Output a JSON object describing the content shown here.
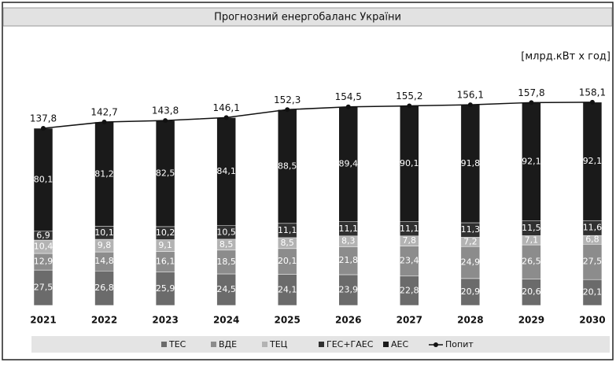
{
  "chart_data": {
    "type": "bar",
    "stacked": true,
    "title": "Прогнозний енергобаланс України",
    "unit_label": "[млрд.кВт х год]",
    "categories": [
      "2021",
      "2022",
      "2023",
      "2024",
      "2025",
      "2026",
      "2027",
      "2028",
      "2029",
      "2030"
    ],
    "series": [
      {
        "name": "ТЕС",
        "color": "#6b6b6b",
        "values": [
          27.5,
          26.8,
          25.9,
          24.5,
          24.1,
          23.9,
          22.8,
          20.9,
          20.6,
          20.1
        ],
        "value_labels": [
          "27,5",
          "26,8",
          "25,9",
          "24,5",
          "24,1",
          "23,9",
          "22,8",
          "20,9",
          "20,6",
          "20,1"
        ]
      },
      {
        "name": "ВДЕ",
        "color": "#8c8c8c",
        "values": [
          12.9,
          14.8,
          16.1,
          18.5,
          20.1,
          21.8,
          23.4,
          24.9,
          26.5,
          27.5
        ],
        "value_labels": [
          "12,9",
          "14,8",
          "16,1",
          "18,5",
          "20,1",
          "21,8",
          "23,4",
          "24,9",
          "26,5",
          "27,5"
        ]
      },
      {
        "name": "ТЕЦ",
        "color": "#b3b3b3",
        "values": [
          10.4,
          9.8,
          9.1,
          8.5,
          8.5,
          8.3,
          7.8,
          7.2,
          7.1,
          6.8
        ],
        "value_labels": [
          "10,4",
          "9,8",
          "9,1",
          "8,5",
          "8,5",
          "8,3",
          "7,8",
          "7,2",
          "7,1",
          "6,8"
        ]
      },
      {
        "name": "ГЕС+ГАЕС",
        "color": "#303030",
        "values": [
          6.9,
          10.1,
          10.2,
          10.5,
          11.1,
          11.1,
          11.1,
          11.3,
          11.5,
          11.6
        ],
        "value_labels": [
          "6,9",
          "10,1",
          "10,2",
          "10,5",
          "11,1",
          "11,1",
          "11,1",
          "11,3",
          "11,5",
          "11,6"
        ]
      },
      {
        "name": "АЕС",
        "color": "#1a1a1a",
        "values": [
          80.1,
          81.2,
          82.5,
          84.1,
          88.5,
          89.4,
          90.1,
          91.8,
          92.1,
          92.1
        ],
        "value_labels": [
          "80,1",
          "81,2",
          "82,5",
          "84,1",
          "88,5",
          "89,4",
          "90,1",
          "91,8",
          "92,1",
          "92,1"
        ]
      }
    ],
    "line_series": {
      "name": "Попит",
      "color": "#111111",
      "values": [
        137.8,
        142.7,
        143.8,
        146.1,
        152.3,
        154.5,
        155.2,
        156.1,
        157.8,
        158.1
      ],
      "value_labels": [
        "137,8",
        "142,7",
        "143,8",
        "146,1",
        "152,3",
        "154,5",
        "155,2",
        "156,1",
        "157,8",
        "158,1"
      ]
    }
  }
}
